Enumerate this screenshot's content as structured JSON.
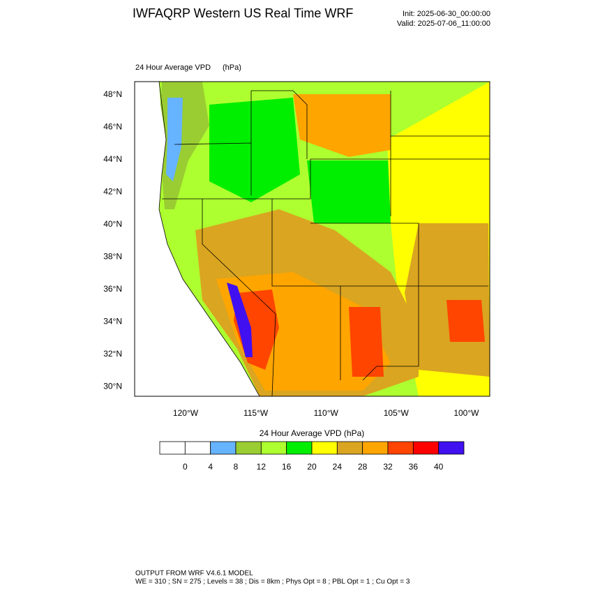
{
  "header": {
    "title": "IWFAQRP Western US Real Time WRF",
    "init": "Init: 2025-06-30_00:00:00",
    "valid": "Valid: 2025-07-06_11:00:00"
  },
  "map": {
    "title": "24 Hour Average VPD",
    "units": "(hPa)",
    "lat_labels": [
      "48°N",
      "46°N",
      "44°N",
      "42°N",
      "40°N",
      "38°N",
      "36°N",
      "34°N",
      "32°N",
      "30°N"
    ],
    "lon_labels": [
      "120°W",
      "115°W",
      "110°W",
      "105°W",
      "100°W"
    ]
  },
  "colorbar": {
    "title": "24 Hour Average VPD  (hPa)",
    "colors": [
      "#ffffff",
      "#ffffff",
      "#66b3ff",
      "#9acd32",
      "#adff2f",
      "#00ee00",
      "#ffff00",
      "#daa520",
      "#ffa500",
      "#ff4500",
      "#ff0000",
      "#4010f0"
    ],
    "ticks": [
      0,
      4,
      8,
      12,
      16,
      20,
      24,
      28,
      32,
      36,
      40
    ]
  },
  "footer": {
    "line1": "OUTPUT FROM WRF V4.6.1 MODEL",
    "line2": "WE = 310 ; SN = 275 ; Levels = 38 ; Dis = 8km ; Phys Opt = 8 ; PBL Opt = 1 ; Cu Opt = 3"
  }
}
